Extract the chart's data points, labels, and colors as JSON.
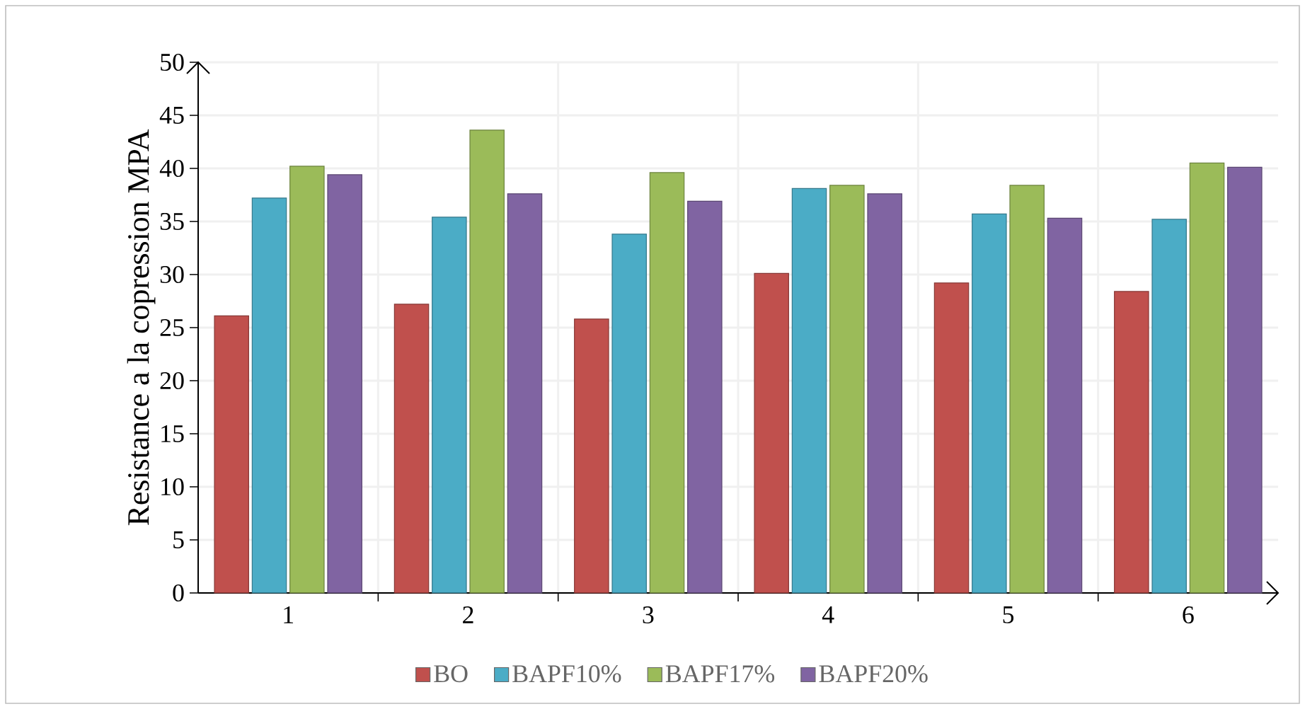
{
  "chart_data": {
    "type": "bar",
    "ylabel": "Resistance a la copression MPA",
    "categories": [
      "1",
      "2",
      "3",
      "4",
      "5",
      "6"
    ],
    "series": [
      {
        "name": "BO",
        "color": "#c0504d",
        "values": [
          26.1,
          27.2,
          25.8,
          30.1,
          29.2,
          28.4
        ]
      },
      {
        "name": "BAPF10%",
        "color": "#4bacc6",
        "values": [
          37.2,
          35.4,
          33.8,
          38.1,
          35.7,
          35.2
        ]
      },
      {
        "name": "BAPF17%",
        "color": "#9bbb59",
        "values": [
          40.2,
          43.6,
          39.6,
          38.4,
          38.4,
          40.5
        ]
      },
      {
        "name": "BAPF20%",
        "color": "#8064a2",
        "values": [
          39.4,
          37.6,
          36.9,
          37.6,
          35.3,
          40.1
        ]
      }
    ],
    "ylim": [
      0,
      50
    ],
    "yticks": [
      0,
      5,
      10,
      15,
      20,
      25,
      30,
      35,
      40,
      45,
      50
    ],
    "grid": true,
    "legend": "bottom"
  }
}
